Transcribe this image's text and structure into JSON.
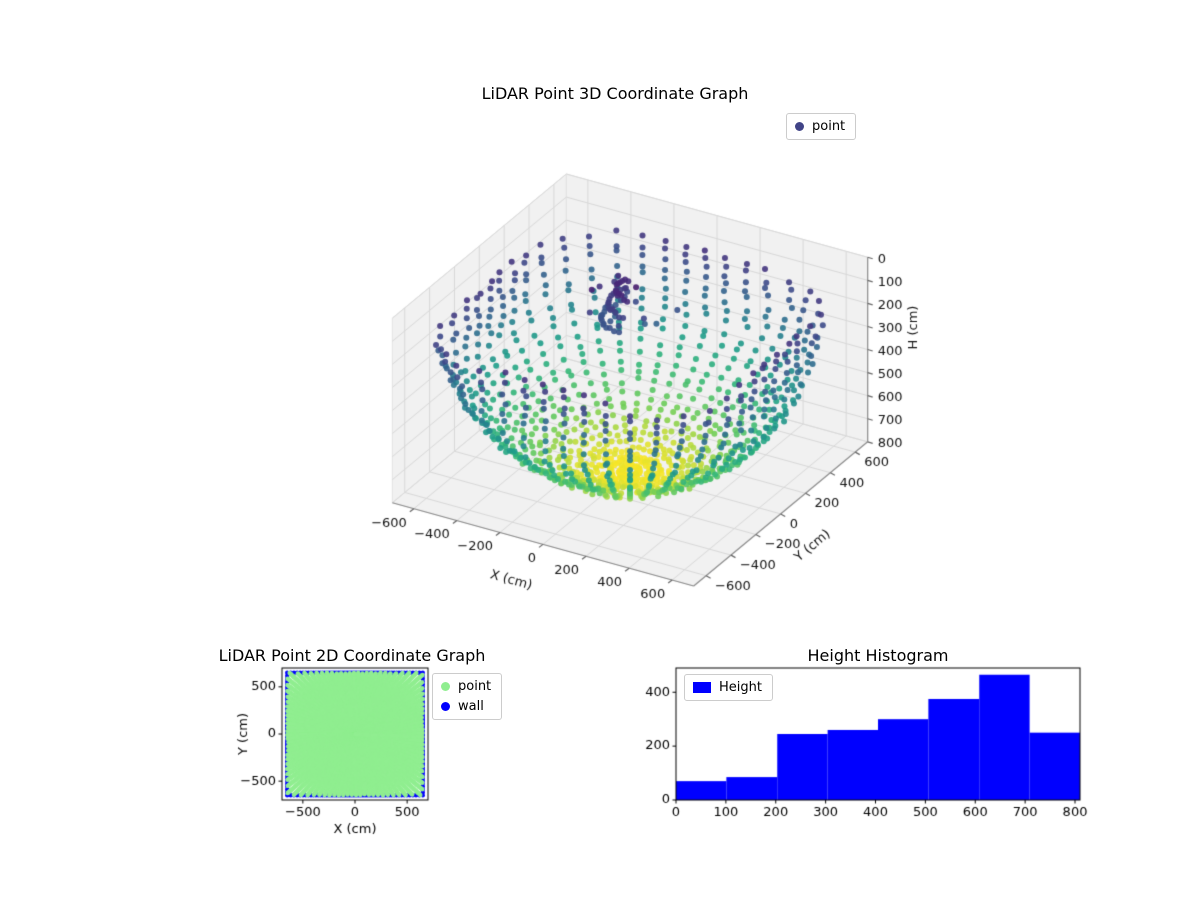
{
  "figure": {
    "background": "#ffffff"
  },
  "chart_data": [
    {
      "id": "lidar-3d",
      "type": "scatter3d",
      "title": "LiDAR Point 3D Coordinate Graph",
      "legend": {
        "label": "point",
        "marker_color": "#414487",
        "position": "upper right"
      },
      "xlabel": "X (cm)",
      "ylabel": "Y (cm)",
      "zlabel": "H (cm)",
      "xticks": [
        -600,
        -400,
        -200,
        0,
        200,
        400,
        600
      ],
      "yticks": [
        -600,
        -400,
        -200,
        0,
        200,
        400,
        600
      ],
      "zticks": [
        0,
        100,
        200,
        300,
        400,
        500,
        600,
        700,
        800
      ],
      "xlim": [
        -700,
        700
      ],
      "ylim": [
        -700,
        700
      ],
      "zlim": [
        0,
        800
      ],
      "z_axis_inverted": true,
      "colormap": "viridis",
      "color_by": "H",
      "view": {
        "elev": 30,
        "azim": -60
      },
      "points_model": {
        "description": "Synthetic LiDAR dome scan: radial rays produce a bowl of points (H max ~800 cm at center, yellow) rising to a dark rim, with vertical wall-hit columns at the square room boundary and a small dark object cluster near the top center.",
        "n_azimuth": 45,
        "theta_deg_min": 3,
        "theta_deg_max": 78,
        "n_theta": 26,
        "dome_radius_cm": 800,
        "wall_half_size_cm": 650,
        "jitter_cm": 12,
        "cluster": {
          "center_xy": [
            -60,
            190
          ],
          "arc_radii": [
            100,
            130,
            160
          ],
          "arc_H": [
            110,
            170,
            230
          ],
          "n_random": 20
        }
      }
    },
    {
      "id": "lidar-2d",
      "type": "scatter",
      "title": "LiDAR Point 2D Coordinate Graph",
      "xlabel": "X (cm)",
      "ylabel": "Y (cm)",
      "xticks": [
        -500,
        0,
        500
      ],
      "yticks": [
        -500,
        0,
        500
      ],
      "xlim": [
        -700,
        700
      ],
      "ylim": [
        -700,
        700
      ],
      "room_half_size_cm": 650,
      "series": [
        {
          "name": "point",
          "color": "#90EE90",
          "pattern": "dense radial fill of the square room floor, half-size 650 cm"
        },
        {
          "name": "wall",
          "color": "#0000FF",
          "pattern": "points along the square room perimeter, half-size 650 cm"
        }
      ],
      "legend_position": "outside upper right"
    },
    {
      "id": "height-histogram",
      "type": "bar",
      "title": "Height Histogram",
      "series_label": "Height",
      "color": "#0000FF",
      "bin_edges": [
        0,
        101,
        203,
        304,
        405,
        506,
        608,
        709,
        810
      ],
      "counts": [
        70,
        85,
        245,
        260,
        300,
        375,
        465,
        250
      ],
      "xticks": [
        0,
        100,
        200,
        300,
        400,
        500,
        600,
        700,
        800
      ],
      "yticks": [
        0,
        200,
        400
      ],
      "xlim": [
        0,
        810
      ],
      "ylim": [
        0,
        490
      ],
      "legend_position": "upper left"
    }
  ]
}
